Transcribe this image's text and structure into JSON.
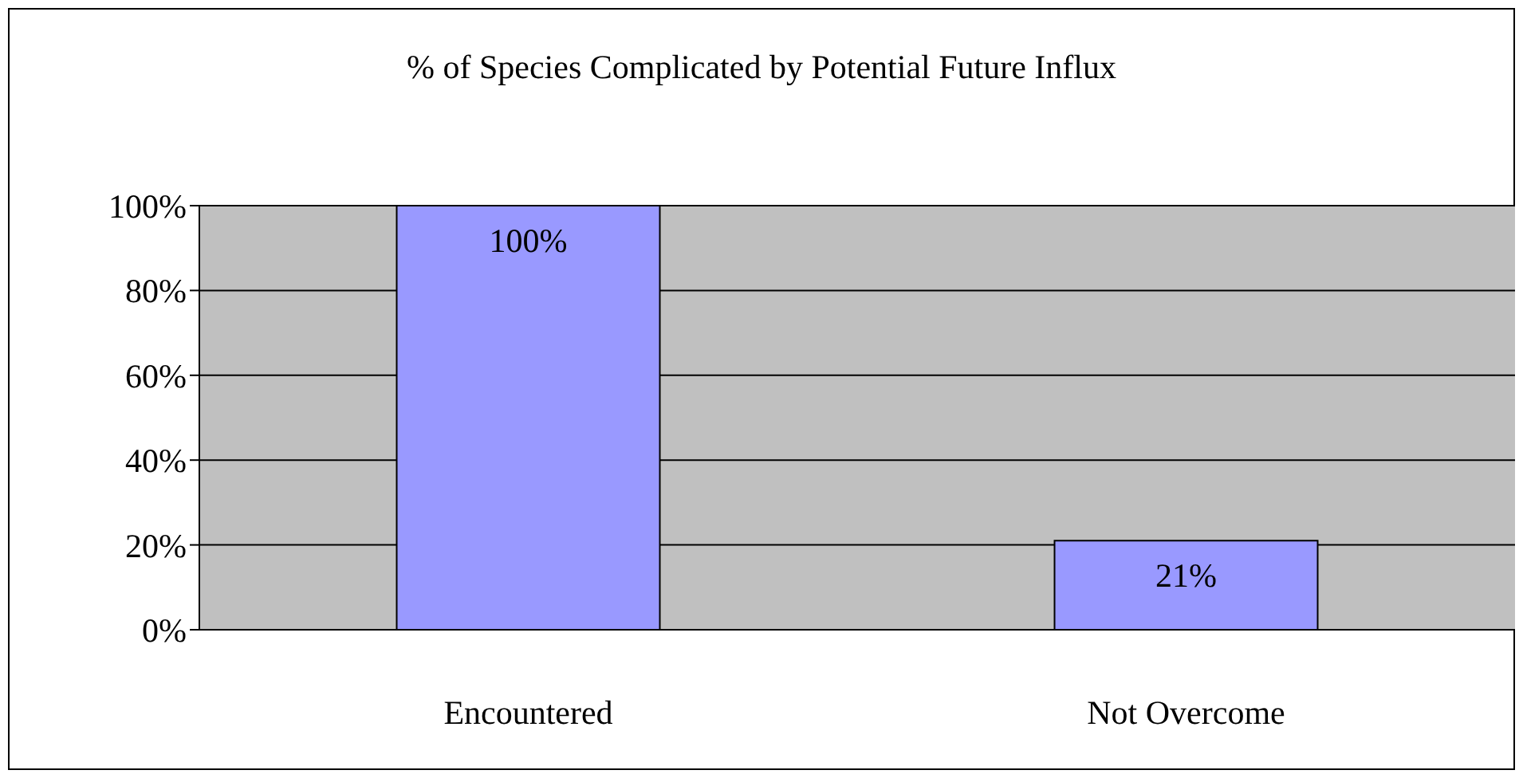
{
  "chart_data": {
    "type": "bar",
    "title": "% of Species Complicated by Potential Future Influx",
    "categories": [
      "Encountered",
      "Not Overcome"
    ],
    "values": [
      100,
      21
    ],
    "value_labels": [
      "100%",
      "21%"
    ],
    "color": "#9999ff",
    "ylim": [
      0,
      100
    ],
    "yticks": [
      {
        "value": 0,
        "label": "0%"
      },
      {
        "value": 20,
        "label": "20%"
      },
      {
        "value": 40,
        "label": "40%"
      },
      {
        "value": 60,
        "label": "60%"
      },
      {
        "value": 80,
        "label": "80%"
      },
      {
        "value": 100,
        "label": "100%"
      }
    ],
    "grid": "y",
    "legend": false
  }
}
